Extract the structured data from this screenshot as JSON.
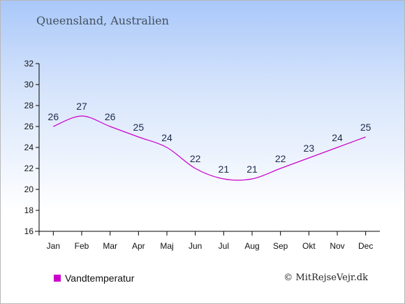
{
  "title": "Queensland, Australien",
  "legend": {
    "label": "Vandtemperatur",
    "color": "#cc00cc"
  },
  "credit": "© MitRejseVejr.dk",
  "chart_data": {
    "type": "line",
    "categories": [
      "Jan",
      "Feb",
      "Mar",
      "Apr",
      "Maj",
      "Jun",
      "Jul",
      "Aug",
      "Sep",
      "Okt",
      "Nov",
      "Dec"
    ],
    "series": [
      {
        "name": "Vandtemperatur",
        "color": "#cc00cc",
        "values": [
          26,
          27,
          26,
          25,
          24,
          22,
          21,
          21,
          22,
          23,
          24,
          25
        ]
      }
    ],
    "ylim": [
      16,
      32
    ],
    "yticks": [
      16,
      18,
      20,
      22,
      24,
      26,
      28,
      30,
      32
    ],
    "grid": false,
    "data_labels": true,
    "legend_position": "bottom-left"
  }
}
